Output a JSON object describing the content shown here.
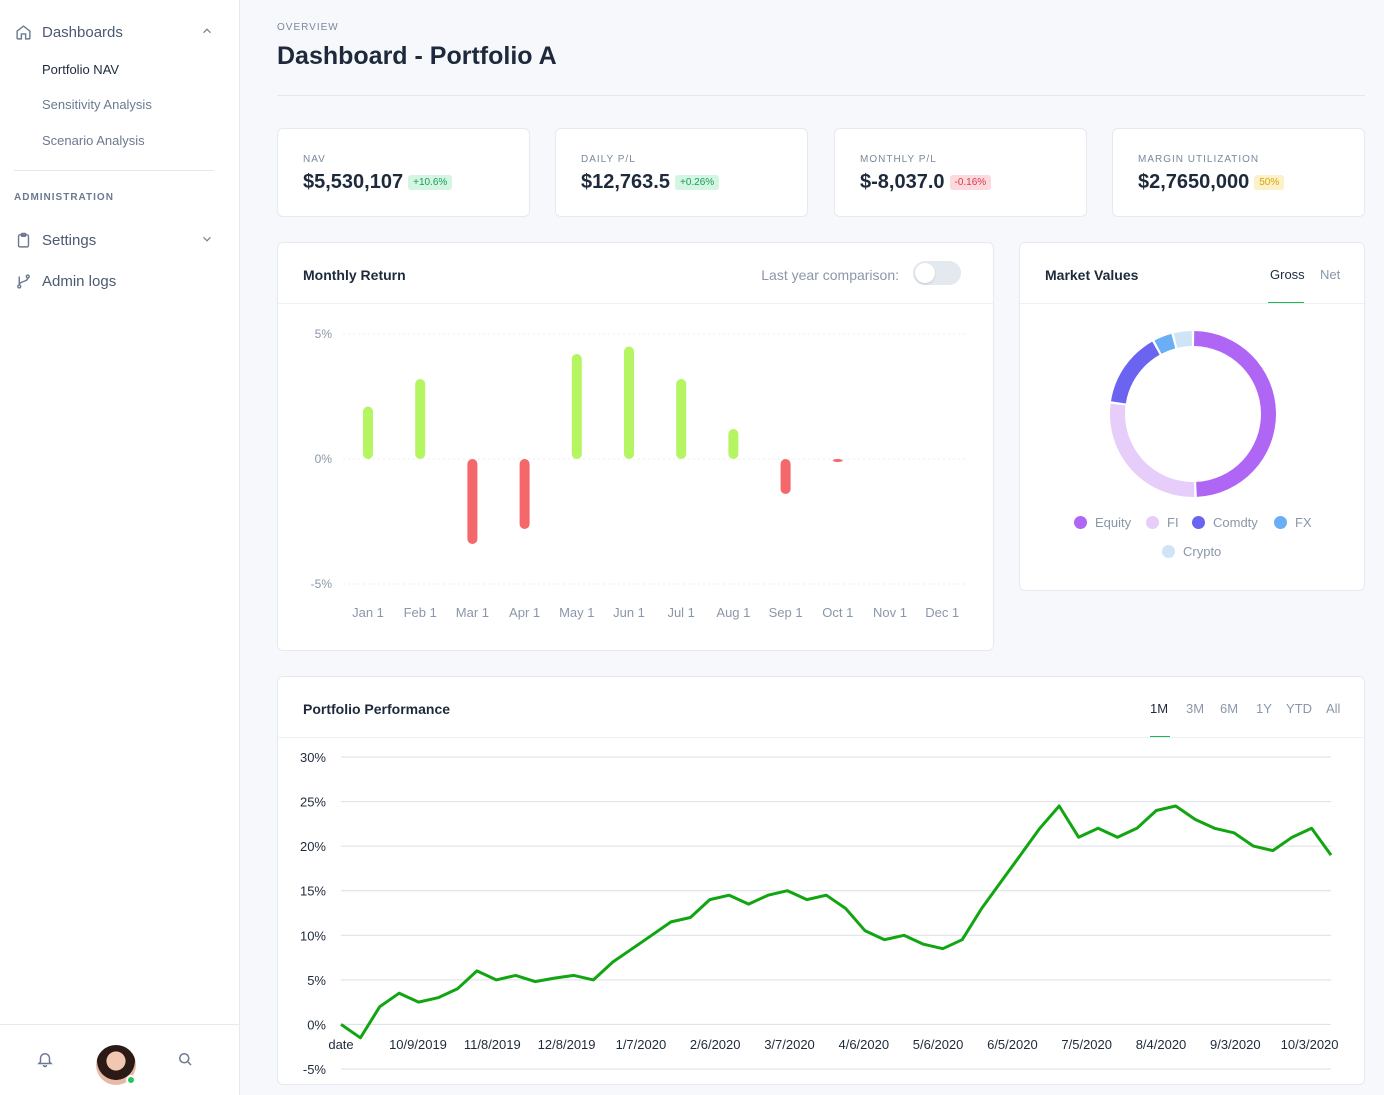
{
  "sidebar": {
    "dashboards_label": "Dashboards",
    "items": [
      {
        "label": "Portfolio NAV"
      },
      {
        "label": "Sensitivity Analysis"
      },
      {
        "label": "Scenario Analysis"
      }
    ],
    "section_label": "ADMINISTRATION",
    "settings_label": "Settings",
    "admin_logs_label": "Admin logs"
  },
  "header": {
    "overline": "OVERVIEW",
    "title": "Dashboard - Portfolio A"
  },
  "stats": [
    {
      "label": "NAV",
      "value": "$5,530,107",
      "badge": "+10.6%",
      "tone": "green"
    },
    {
      "label": "DAILY P/L",
      "value": "$12,763.5",
      "badge": "+0.26%",
      "tone": "green"
    },
    {
      "label": "MONTHLY P/L",
      "value": "$-8,037.0",
      "badge": "-0.16%",
      "tone": "red"
    },
    {
      "label": "MARGIN UTILIZATION",
      "value": "$2,7650,000",
      "badge": "50%",
      "tone": "yellow"
    }
  ],
  "monthly_return": {
    "title": "Monthly Return",
    "toggle_label": "Last year comparison:",
    "toggle_on": false
  },
  "market_values": {
    "title": "Market Values",
    "tabs": [
      "Gross",
      "Net"
    ],
    "active_tab": "Gross"
  },
  "performance": {
    "title": "Portfolio Performance",
    "ranges": [
      "1M",
      "3M",
      "6M",
      "1Y",
      "YTD",
      "All"
    ],
    "active_range": "1M"
  },
  "colors": {
    "positive_bar": "#b5f562",
    "negative_bar": "#f4676b",
    "line": "#12a512",
    "equity": "#b066f5",
    "fi": "#e6cdfa",
    "comdty": "#6a64f0",
    "fx": "#6aaff5",
    "crypto": "#cfe4f7"
  },
  "chart_data": [
    {
      "type": "bar",
      "title": "Monthly Return",
      "categories": [
        "Jan 1",
        "Feb 1",
        "Mar 1",
        "Apr 1",
        "May 1",
        "Jun 1",
        "Jul 1",
        "Aug 1",
        "Sep 1",
        "Oct 1",
        "Nov 1",
        "Dec 1"
      ],
      "values": [
        2.1,
        3.2,
        -3.4,
        -2.8,
        4.2,
        4.5,
        3.2,
        1.2,
        -1.4,
        -0.1,
        null,
        null
      ],
      "yticks": [
        "5%",
        "0%",
        "-5%"
      ],
      "ylim": [
        -5,
        5
      ]
    },
    {
      "type": "pie",
      "title": "Market Values",
      "labels": [
        "Equity",
        "FI",
        "Comdty",
        "FX",
        "Crypto"
      ],
      "values": [
        50,
        28,
        15,
        4,
        4
      ]
    },
    {
      "type": "line",
      "title": "Portfolio Performance",
      "x_labels": [
        "date",
        "10/9/2019",
        "11/8/2019",
        "12/8/2019",
        "1/7/2020",
        "2/6/2020",
        "3/7/2020",
        "4/6/2020",
        "5/6/2020",
        "6/5/2020",
        "7/5/2020",
        "8/4/2020",
        "9/3/2020",
        "10/3/2020"
      ],
      "yticks": [
        "30%",
        "25%",
        "20%",
        "15%",
        "10%",
        "5%",
        "0%",
        "-5%"
      ],
      "ylim": [
        -5,
        30
      ],
      "values": [
        0,
        -1.5,
        2,
        3.5,
        2.5,
        3,
        4,
        6,
        5,
        5.5,
        4.8,
        5.2,
        5.5,
        5,
        7,
        8.5,
        10,
        11.5,
        12,
        14,
        14.5,
        13.5,
        14.5,
        15,
        14,
        14.5,
        13,
        10.5,
        9.5,
        10,
        9,
        8.5,
        9.5,
        13,
        16,
        19,
        22,
        24.5,
        21,
        22,
        21,
        22,
        24,
        24.5,
        23,
        22,
        21.5,
        20,
        19.5,
        21,
        22,
        19
      ]
    }
  ]
}
